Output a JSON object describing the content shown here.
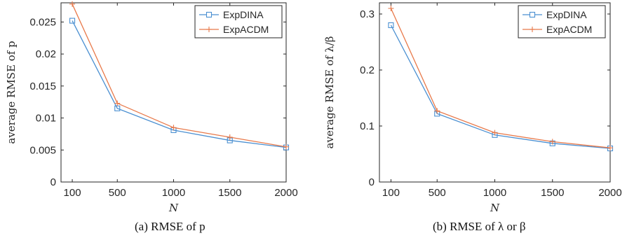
{
  "colors": {
    "series_1": "#4a8fd1",
    "series_2": "#e8794a",
    "axis": "#262626",
    "background": "#ffffff"
  },
  "chart_data": [
    {
      "type": "line",
      "x": [
        100,
        500,
        1000,
        1500,
        2000
      ],
      "x_ticks": [
        "100",
        "500",
        "1000",
        "1500",
        "2000"
      ],
      "xlim": [
        0,
        2000
      ],
      "ylim": [
        0,
        0.028
      ],
      "y_ticks": [
        {
          "value": 0,
          "label": "0"
        },
        {
          "value": 0.005,
          "label": "0.005"
        },
        {
          "value": 0.01,
          "label": "0.01"
        },
        {
          "value": 0.015,
          "label": "0.015"
        },
        {
          "value": 0.02,
          "label": "0.02"
        },
        {
          "value": 0.025,
          "label": "0.025"
        }
      ],
      "xlabel": "N",
      "ylabel": "average RMSE of p",
      "caption": "(a) RMSE of p",
      "grid": false,
      "legend": "top-right",
      "series": [
        {
          "name": "ExpDINA",
          "marker": "square",
          "values": [
            0.0252,
            0.0115,
            0.0081,
            0.0065,
            0.0054
          ]
        },
        {
          "name": "ExpACDM",
          "marker": "plus",
          "values": [
            0.0278,
            0.0123,
            0.0085,
            0.007,
            0.0055
          ]
        }
      ]
    },
    {
      "type": "line",
      "x": [
        100,
        500,
        1000,
        1500,
        2000
      ],
      "x_ticks": [
        "100",
        "500",
        "1000",
        "1500",
        "2000"
      ],
      "xlim": [
        0,
        2000
      ],
      "ylim": [
        0,
        0.32
      ],
      "y_ticks": [
        {
          "value": 0,
          "label": "0"
        },
        {
          "value": 0.1,
          "label": "0.1"
        },
        {
          "value": 0.2,
          "label": "0.2"
        },
        {
          "value": 0.3,
          "label": "0.3"
        }
      ],
      "xlabel": "N",
      "ylabel": "average RMSE of λ/β",
      "caption": "(b) RMSE of λ or β",
      "grid": false,
      "legend": "top-right",
      "series": [
        {
          "name": "ExpDINA",
          "marker": "square",
          "values": [
            0.28,
            0.122,
            0.084,
            0.069,
            0.06
          ]
        },
        {
          "name": "ExpACDM",
          "marker": "plus",
          "values": [
            0.31,
            0.127,
            0.088,
            0.072,
            0.061
          ]
        }
      ]
    }
  ]
}
